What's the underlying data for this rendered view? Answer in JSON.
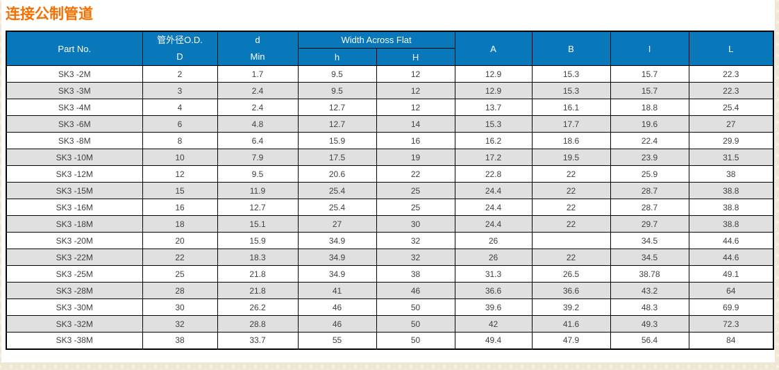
{
  "page": {
    "title": "连接公制管道"
  },
  "colors": {
    "header_bg": "#0878bb",
    "title_orange": "#f57000",
    "alt_row_bg": "#e0e0e0",
    "cell_text": "#404040",
    "border": "#000000",
    "page_texture_base": "#efe8d5"
  },
  "table": {
    "header": {
      "part_no": "Part No.",
      "od_line1": "管外径O.D.",
      "od_line2": "D",
      "d_line1": "d",
      "d_line2": "Min",
      "width_across_flat": "Width Across Flat",
      "waf_h": "h",
      "waf_H": "H",
      "a": "A",
      "b": "B",
      "i": "I",
      "l": "L"
    },
    "rows": [
      [
        "SK3 -2M",
        "2",
        "1.7",
        "9.5",
        "12",
        "12.9",
        "15.3",
        "15.7",
        "22.3"
      ],
      [
        "SK3 -3M",
        "3",
        "2.4",
        "9.5",
        "12",
        "12.9",
        "15.3",
        "15.7",
        "22.3"
      ],
      [
        "SK3 -4M",
        "4",
        "2.4",
        "12.7",
        "12",
        "13.7",
        "16.1",
        "18.8",
        "25.4"
      ],
      [
        "SK3 -6M",
        "6",
        "4.8",
        "12.7",
        "14",
        "15.3",
        "17.7",
        "19.6",
        "27"
      ],
      [
        "SK3 -8M",
        "8",
        "6.4",
        "15.9",
        "16",
        "16.2",
        "18.6",
        "22.4",
        "29.9"
      ],
      [
        "SK3 -10M",
        "10",
        "7.9",
        "17.5",
        "19",
        "17.2",
        "19.5",
        "23.9",
        "31.5"
      ],
      [
        "SK3 -12M",
        "12",
        "9.5",
        "20.6",
        "22",
        "22.8",
        "22",
        "25.9",
        "38"
      ],
      [
        "SK3 -15M",
        "15",
        "11.9",
        "25.4",
        "25",
        "24.4",
        "22",
        "28.7",
        "38.8"
      ],
      [
        "SK3 -16M",
        "16",
        "12.7",
        "25.4",
        "25",
        "24.4",
        "22",
        "28.7",
        "38.8"
      ],
      [
        "SK3 -18M",
        "18",
        "15.1",
        "27",
        "30",
        "24.4",
        "22",
        "29.7",
        "38.8"
      ],
      [
        "SK3 -20M",
        "20",
        "15.9",
        "34.9",
        "32",
        "26",
        "",
        "34.5",
        "44.6"
      ],
      [
        "SK3 -22M",
        "22",
        "18.3",
        "34.9",
        "32",
        "26",
        "22",
        "34.5",
        "44.6"
      ],
      [
        "SK3 -25M",
        "25",
        "21.8",
        "34.9",
        "38",
        "31.3",
        "26.5",
        "38.78",
        "49.1"
      ],
      [
        "SK3 -28M",
        "28",
        "21.8",
        "41",
        "46",
        "36.6",
        "36.6",
        "43.2",
        "64"
      ],
      [
        "SK3 -30M",
        "30",
        "26.2",
        "46",
        "50",
        "39.6",
        "39.2",
        "48.3",
        "69.9"
      ],
      [
        "SK3 -32M",
        "32",
        "28.8",
        "46",
        "50",
        "42",
        "41.6",
        "49.3",
        "72.3"
      ],
      [
        "SK3 -38M",
        "38",
        "33.7",
        "55",
        "50",
        "49.4",
        "47.9",
        "56.4",
        "84"
      ]
    ]
  }
}
